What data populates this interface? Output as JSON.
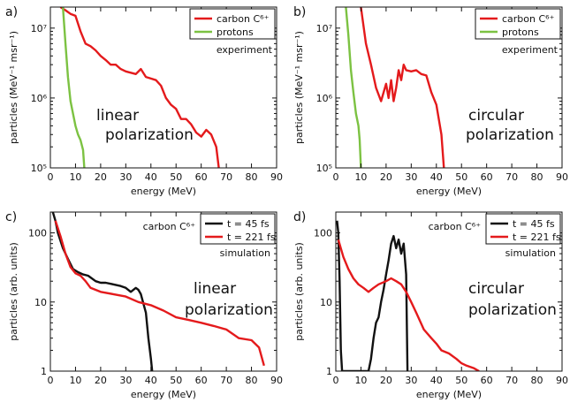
{
  "colors": {
    "red": "#e41a1c",
    "green": "#7cc242",
    "black": "#111111",
    "axis": "#111111"
  },
  "chart_data": [
    {
      "id": "a",
      "type": "line",
      "panel_label": "a)",
      "xlabel": "energy (MeV)",
      "ylabel": "particles (MeV⁻¹ msr⁻¹)",
      "xlim": [
        0,
        90
      ],
      "ylim": [
        100000,
        20000000
      ],
      "yscale": "log",
      "xticks": [
        0,
        10,
        20,
        30,
        40,
        50,
        60,
        70,
        80,
        90
      ],
      "xtick_labels": [
        "0",
        "10",
        "20",
        "30",
        "40",
        "50",
        "60",
        "70",
        "80",
        "90"
      ],
      "yticks": [
        100000,
        1000000,
        10000000
      ],
      "ytick_labels": [
        "10⁵",
        "10⁶",
        "10⁷"
      ],
      "legend_position": "top-right",
      "annotations": [
        "experiment",
        "linear",
        "polarization"
      ],
      "series": [
        {
          "name": "carbon C⁶⁺",
          "color_key": "red",
          "x": [
            4,
            6,
            8,
            10,
            12,
            14,
            16,
            18,
            20,
            22,
            24,
            26,
            28,
            30,
            32,
            34,
            36,
            38,
            40,
            42,
            44,
            46,
            48,
            50,
            52,
            54,
            56,
            58,
            60,
            62,
            64,
            66,
            67
          ],
          "y": [
            20000000,
            18000000,
            16000000,
            15000000,
            9000000,
            6000000,
            5500000,
            4800000,
            4000000,
            3500000,
            3000000,
            3000000,
            2600000,
            2400000,
            2300000,
            2200000,
            2600000,
            2000000,
            1900000,
            1800000,
            1500000,
            1000000,
            800000,
            700000,
            500000,
            500000,
            420000,
            320000,
            280000,
            350000,
            300000,
            200000,
            100000
          ]
        },
        {
          "name": "protons",
          "color_key": "green",
          "x": [
            5,
            6,
            7,
            8,
            9,
            10,
            11,
            12,
            13,
            13.5
          ],
          "y": [
            20000000,
            6000000,
            2000000,
            900000,
            600000,
            400000,
            300000,
            250000,
            180000,
            100000
          ]
        }
      ]
    },
    {
      "id": "b",
      "type": "line",
      "panel_label": "b)",
      "xlabel": "energy (MeV)",
      "ylabel": "particles (MeV⁻¹ msr⁻¹)",
      "xlim": [
        0,
        90
      ],
      "ylim": [
        100000,
        20000000
      ],
      "yscale": "log",
      "xticks": [
        0,
        10,
        20,
        30,
        40,
        50,
        60,
        70,
        80,
        90
      ],
      "xtick_labels": [
        "0",
        "10",
        "20",
        "30",
        "40",
        "50",
        "60",
        "70",
        "80",
        "90"
      ],
      "yticks": [
        100000,
        1000000,
        10000000
      ],
      "ytick_labels": [
        "10⁵",
        "10⁶",
        "10⁷"
      ],
      "legend_position": "top-right",
      "annotations": [
        "experiment",
        "circular",
        "polarization"
      ],
      "series": [
        {
          "name": "carbon C⁶⁺",
          "color_key": "red",
          "x": [
            10,
            12,
            14,
            16,
            18,
            20,
            21,
            22,
            23,
            24,
            25,
            26,
            27,
            28,
            30,
            32,
            34,
            36,
            38,
            40,
            42,
            43
          ],
          "y": [
            20000000,
            6000000,
            3000000,
            1400000,
            900000,
            1600000,
            1000000,
            1800000,
            900000,
            1400000,
            2500000,
            1800000,
            3000000,
            2500000,
            2400000,
            2500000,
            2200000,
            2100000,
            1200000,
            800000,
            300000,
            100000
          ]
        },
        {
          "name": "protons",
          "color_key": "green",
          "x": [
            4,
            5,
            6,
            7,
            8,
            9,
            9.5,
            10
          ],
          "y": [
            20000000,
            8000000,
            2500000,
            1200000,
            600000,
            400000,
            250000,
            100000
          ]
        }
      ]
    },
    {
      "id": "c",
      "type": "line",
      "panel_label": "c)",
      "xlabel": "energy (MeV)",
      "ylabel": "particles (arb. units)",
      "xlim": [
        0,
        90
      ],
      "ylim": [
        1,
        200
      ],
      "yscale": "log",
      "xticks": [
        0,
        10,
        20,
        30,
        40,
        50,
        60,
        70,
        80,
        90
      ],
      "xtick_labels": [
        "0",
        "10",
        "20",
        "30",
        "40",
        "50",
        "60",
        "70",
        "80",
        "90"
      ],
      "yticks": [
        1,
        10,
        100
      ],
      "ytick_labels": [
        "1",
        "10",
        "100"
      ],
      "legend_position": "top-right",
      "annotations": [
        "carbon C⁶⁺",
        "simulation",
        "linear",
        "polarization"
      ],
      "series": [
        {
          "name": "t = 45 fs",
          "color_key": "black",
          "x": [
            1,
            2,
            3,
            5,
            7,
            9,
            11,
            13,
            15,
            18,
            20,
            22,
            25,
            28,
            30,
            32,
            34,
            35,
            36,
            38,
            39,
            40,
            40.5
          ],
          "y": [
            200,
            150,
            100,
            60,
            42,
            30,
            27,
            25,
            24,
            20,
            19,
            19,
            18,
            17,
            16,
            14,
            16,
            15,
            13,
            7,
            3,
            1.5,
            1
          ]
        },
        {
          "name": "t = 221 fs",
          "color_key": "red",
          "x": [
            2,
            4,
            6,
            8,
            10,
            12,
            14,
            16,
            18,
            20,
            25,
            30,
            35,
            40,
            45,
            50,
            55,
            60,
            65,
            70,
            75,
            80,
            83,
            85
          ],
          "y": [
            150,
            90,
            50,
            32,
            26,
            24,
            20,
            16,
            15,
            14,
            13,
            12,
            10,
            9,
            7.5,
            6,
            5.5,
            5,
            4.5,
            4,
            3,
            2.8,
            2.2,
            1.2
          ]
        }
      ]
    },
    {
      "id": "d",
      "type": "line",
      "panel_label": "d)",
      "xlabel": "energy (MeV)",
      "ylabel": "particles (arb. units)",
      "xlim": [
        0,
        90
      ],
      "ylim": [
        1,
        200
      ],
      "yscale": "log",
      "xticks": [
        0,
        10,
        20,
        30,
        40,
        50,
        60,
        70,
        80,
        90
      ],
      "xtick_labels": [
        "0",
        "10",
        "20",
        "30",
        "40",
        "50",
        "60",
        "70",
        "80",
        "90"
      ],
      "yticks": [
        1,
        10,
        100
      ],
      "ytick_labels": [
        "1",
        "10",
        "100"
      ],
      "legend_position": "top-right",
      "annotations": [
        "carbon C⁶⁺",
        "simulation",
        "circular",
        "polarization"
      ],
      "series": [
        {
          "name": "t = 45 fs",
          "color_key": "black",
          "x": [
            0.5,
            1,
            1.5,
            2,
            2.5,
            13,
            14,
            15,
            16,
            17,
            18,
            19,
            20,
            21,
            22,
            23,
            24,
            25,
            26,
            27,
            28,
            28.5
          ],
          "y": [
            150,
            100,
            20,
            2,
            1,
            1,
            1.5,
            3,
            5,
            6,
            10,
            15,
            25,
            40,
            70,
            90,
            60,
            80,
            50,
            70,
            25,
            1
          ]
        },
        {
          "name": "t = 221 fs",
          "color_key": "red",
          "x": [
            1,
            3,
            5,
            7,
            9,
            11,
            13,
            15,
            17,
            20,
            22,
            24,
            26,
            28,
            30,
            32,
            35,
            38,
            40,
            42,
            45,
            48,
            50,
            52,
            55,
            57
          ],
          "y": [
            80,
            45,
            30,
            22,
            18,
            16,
            14,
            16,
            18,
            20,
            22,
            20,
            18,
            14,
            10,
            7,
            4,
            3,
            2.5,
            2,
            1.8,
            1.5,
            1.3,
            1.2,
            1.1,
            1
          ]
        }
      ]
    }
  ]
}
